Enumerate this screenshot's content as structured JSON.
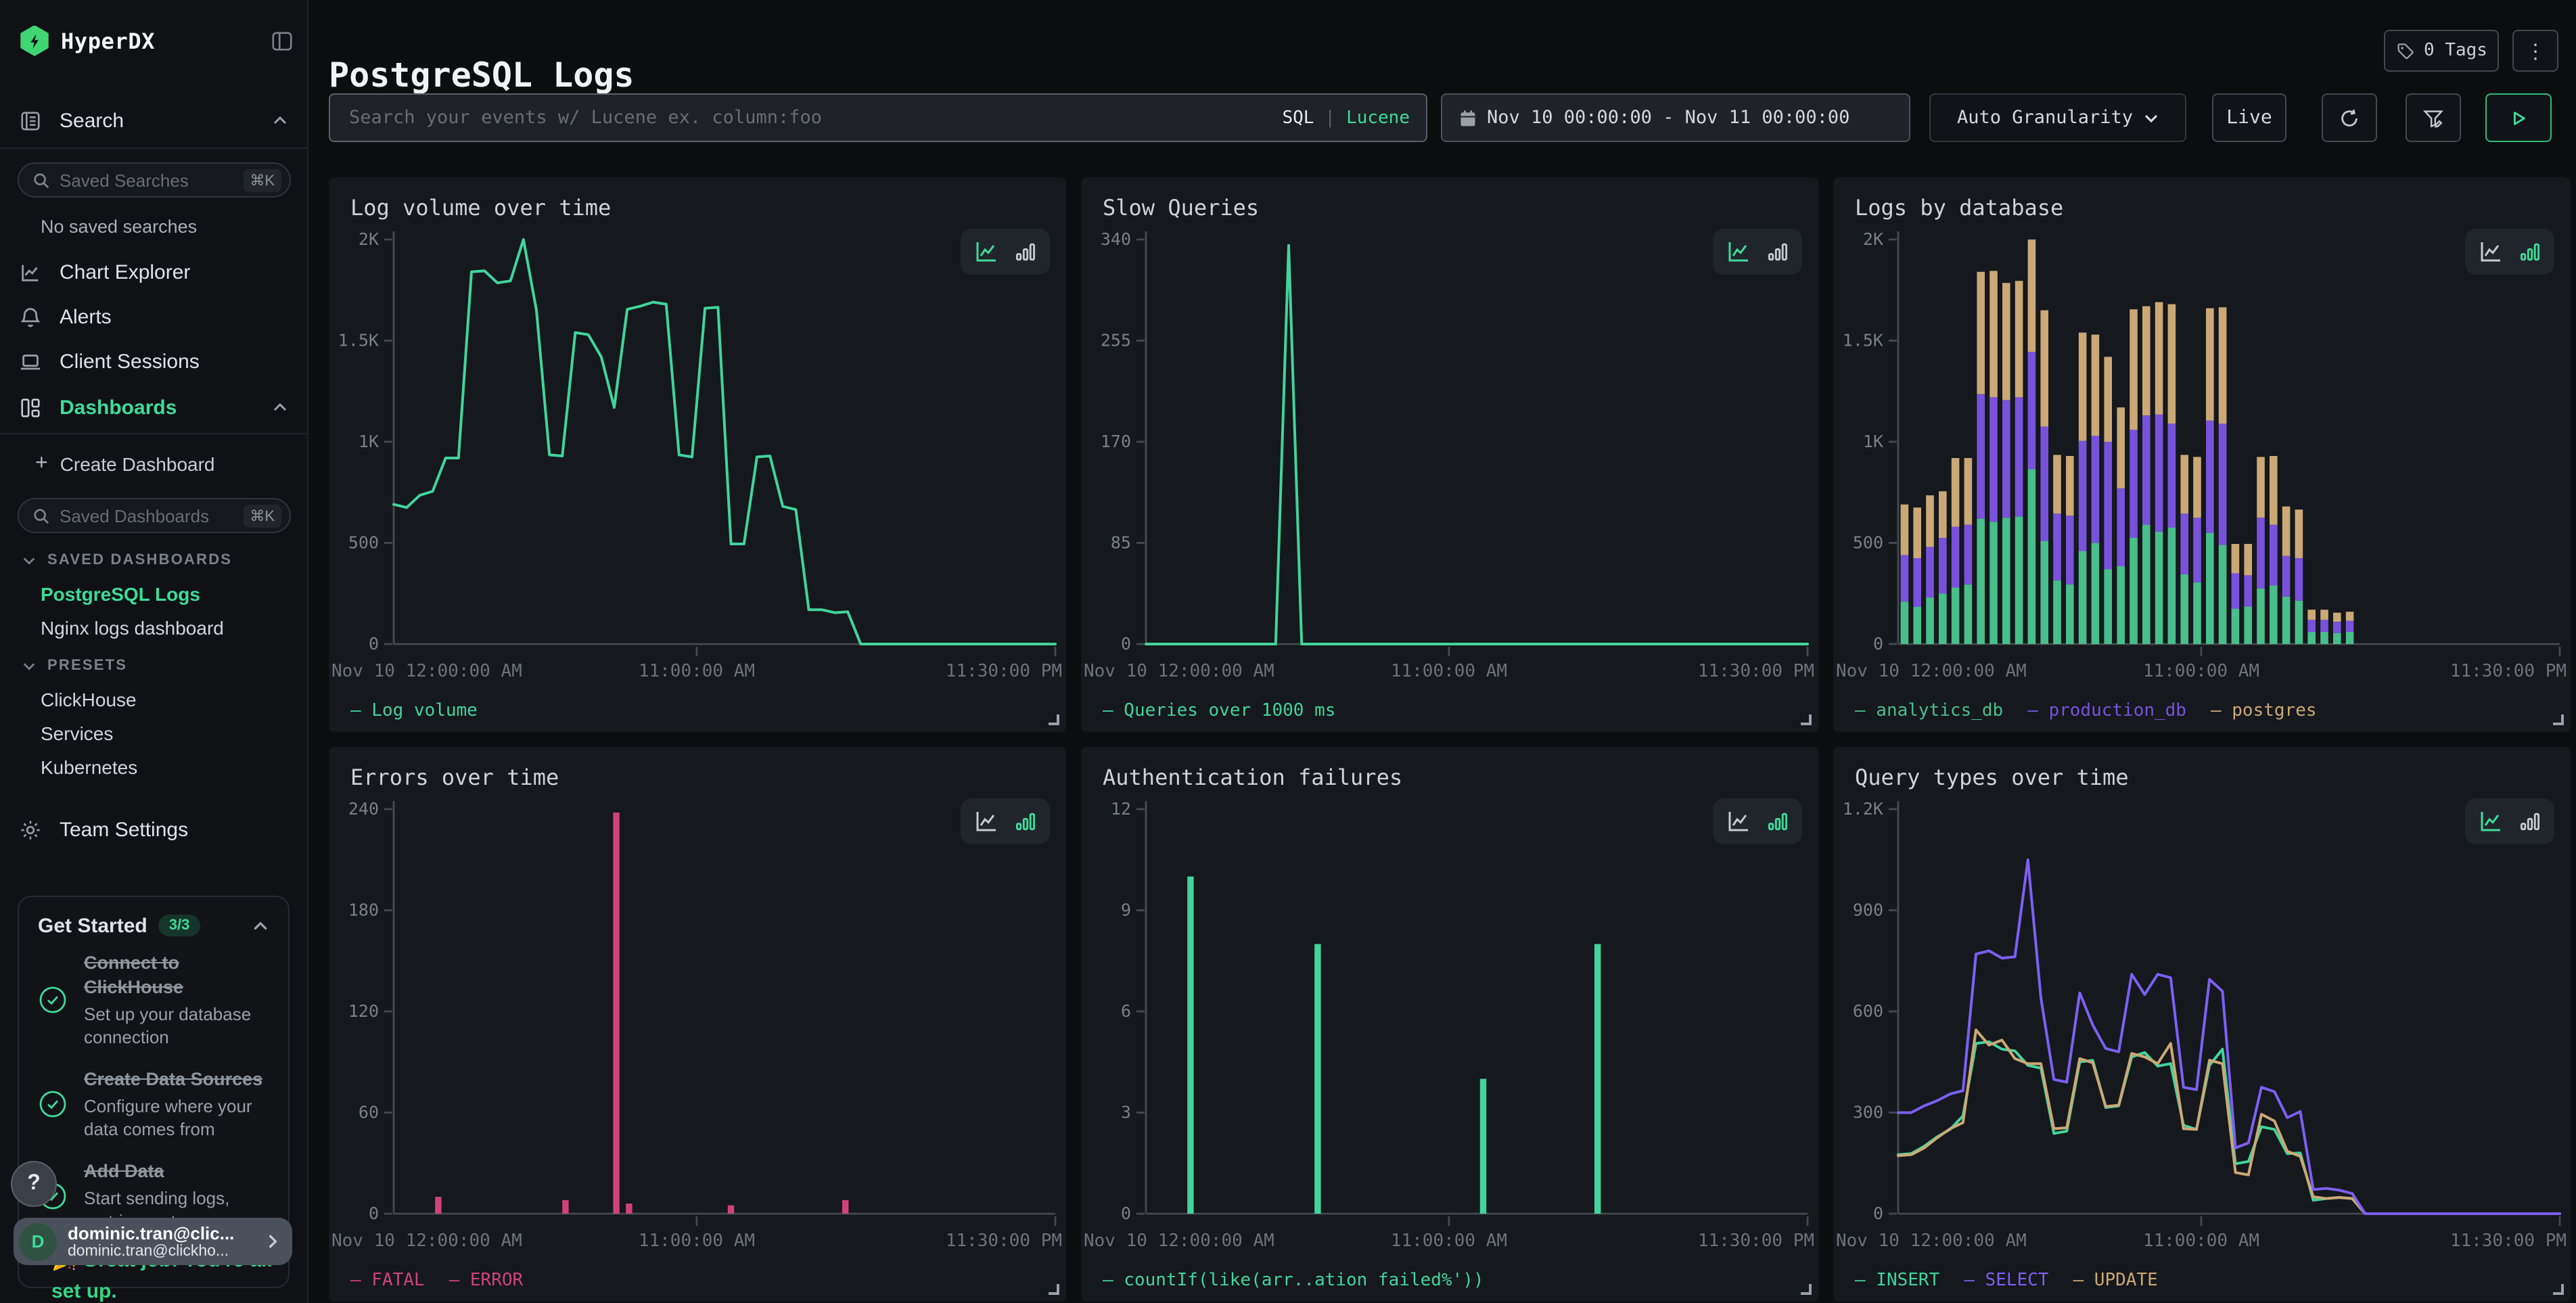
{
  "app": {
    "brand": "HyperDX"
  },
  "colors": {
    "accent_green": "#3edc97",
    "chart_green": "#41d49b",
    "stacked_green": "#48be8b",
    "chart_purple": "#7952dc",
    "chart_tan": "#cba876",
    "chart_pink": "#cf4379"
  },
  "sidebar": {
    "search_nav": "Search",
    "saved_searches_placeholder": "Saved Searches",
    "shortcut_hint": "⌘K",
    "no_saved_searches": "No saved searches",
    "nav": {
      "chart_explorer": "Chart Explorer",
      "alerts": "Alerts",
      "client_sessions": "Client Sessions",
      "dashboards": "Dashboards"
    },
    "create_dashboard": "Create Dashboard",
    "saved_dashboards_placeholder": "Saved Dashboards",
    "saved_dashboards_header": "SAVED DASHBOARDS",
    "saved_dashboards": [
      "PostgreSQL Logs",
      "Nginx logs dashboard"
    ],
    "active_dashboard": "PostgreSQL Logs",
    "presets_header": "PRESETS",
    "presets": [
      "ClickHouse",
      "Services",
      "Kubernetes"
    ],
    "team_settings": "Team Settings",
    "get_started": {
      "title": "Get Started",
      "badge": "3/3",
      "steps": [
        {
          "title": "Connect to ClickHouse",
          "desc": "Set up your database connection",
          "done": true
        },
        {
          "title": "Create Data Sources",
          "desc": "Configure where your data comes from",
          "done": true
        },
        {
          "title": "Add Data",
          "desc": "Start sending logs, metrics, or traces",
          "done": true
        }
      ],
      "congrats": "🎉 Great job! You're all set up."
    },
    "user": {
      "initial": "D",
      "name": "dominic.tran@clic...",
      "email": "dominic.tran@clickho..."
    },
    "help_button": "?"
  },
  "header": {
    "title": "PostgreSQL Logs",
    "tags_label": "0 Tags",
    "search_placeholder": "Search your events w/ Lucene ex. column:foo",
    "lang_sql": "SQL",
    "lang_divider": "|",
    "lang_lucene": "Lucene",
    "date_range": "Nov 10 00:00:00 - Nov 11 00:00:00",
    "granularity": "Auto Granularity",
    "live_label": "Live"
  },
  "chart_data": [
    {
      "id": "log-volume",
      "title": "Log volume over time",
      "type": "line",
      "active_view": "line",
      "x_labels": [
        "Nov 10 12:00:00 AM",
        "11:00:00 AM",
        "11:30:00 PM"
      ],
      "y_ticks": [
        "0",
        "500",
        "1K",
        "1.5K",
        "2K"
      ],
      "y_max": 2000,
      "series": [
        {
          "name": "Log volume",
          "color": "#41d49b",
          "values": [
            690,
            675,
            735,
            755,
            920,
            920,
            1840,
            1845,
            1785,
            1795,
            2000,
            1650,
            935,
            930,
            1540,
            1530,
            1420,
            1170,
            1655,
            1670,
            1690,
            1680,
            935,
            925,
            1660,
            1665,
            495,
            495,
            925,
            930,
            680,
            665,
            170,
            170,
            155,
            160,
            0,
            0,
            0,
            0,
            0,
            0,
            0,
            0,
            0,
            0,
            0,
            0,
            0,
            0,
            0,
            0
          ]
        }
      ],
      "legend": [
        {
          "label": "Log volume",
          "color": "#41d49b"
        }
      ]
    },
    {
      "id": "slow-queries",
      "title": "Slow Queries",
      "type": "line",
      "active_view": "line",
      "x_labels": [
        "Nov 10 12:00:00 AM",
        "11:00:00 AM",
        "11:30:00 PM"
      ],
      "y_ticks": [
        "0",
        "85",
        "170",
        "255",
        "340"
      ],
      "y_max": 340,
      "series": [
        {
          "name": "Queries over 1000 ms",
          "color": "#41d49b",
          "values": [
            0,
            0,
            0,
            0,
            0,
            0,
            0,
            0,
            0,
            0,
            0,
            335,
            0,
            0,
            0,
            0,
            0,
            0,
            0,
            0,
            0,
            0,
            0,
            0,
            0,
            0,
            0,
            0,
            0,
            0,
            0,
            0,
            0,
            0,
            0,
            0,
            0,
            0,
            0,
            0,
            0,
            0,
            0,
            0,
            0,
            0,
            0,
            0,
            0,
            0,
            0,
            0
          ]
        }
      ],
      "legend": [
        {
          "label": "Queries over 1000 ms",
          "color": "#41d49b"
        }
      ]
    },
    {
      "id": "logs-by-database",
      "title": "Logs by database",
      "type": "bar",
      "stacked": true,
      "active_view": "bar",
      "x_labels": [
        "Nov 10 12:00:00 AM",
        "11:00:00 AM",
        "11:30:00 PM"
      ],
      "y_ticks": [
        "0",
        "500",
        "1K",
        "1.5K",
        "2K"
      ],
      "y_max": 2000,
      "series": [
        {
          "name": "analytics_db",
          "color": "#48be8b",
          "values": [
            210,
            185,
            230,
            250,
            280,
            295,
            620,
            605,
            625,
            630,
            865,
            510,
            315,
            295,
            460,
            500,
            370,
            385,
            525,
            590,
            555,
            575,
            345,
            305,
            550,
            490,
            175,
            185,
            275,
            290,
            235,
            215,
            60,
            60,
            55,
            60,
            0,
            0,
            0,
            0,
            0,
            0,
            0,
            0,
            0,
            0,
            0,
            0,
            0,
            0,
            0,
            0
          ]
        },
        {
          "name": "production_db",
          "color": "#7952dc",
          "values": [
            230,
            240,
            250,
            275,
            300,
            295,
            615,
            615,
            580,
            590,
            580,
            565,
            330,
            340,
            545,
            530,
            630,
            385,
            535,
            540,
            580,
            515,
            300,
            320,
            555,
            600,
            175,
            155,
            350,
            300,
            200,
            210,
            60,
            60,
            55,
            55,
            0,
            0,
            0,
            0,
            0,
            0,
            0,
            0,
            0,
            0,
            0,
            0,
            0,
            0,
            0,
            0
          ]
        },
        {
          "name": "postgres",
          "color": "#cba876",
          "values": [
            250,
            250,
            255,
            230,
            340,
            330,
            605,
            625,
            580,
            575,
            555,
            575,
            290,
            295,
            535,
            500,
            420,
            400,
            595,
            540,
            555,
            590,
            290,
            300,
            555,
            575,
            145,
            155,
            300,
            340,
            245,
            240,
            50,
            50,
            45,
            45,
            0,
            0,
            0,
            0,
            0,
            0,
            0,
            0,
            0,
            0,
            0,
            0,
            0,
            0,
            0,
            0
          ]
        }
      ],
      "legend": [
        {
          "label": "analytics_db",
          "color": "#48be8b"
        },
        {
          "label": "production_db",
          "color": "#7952dc"
        },
        {
          "label": "postgres",
          "color": "#cba876"
        }
      ]
    },
    {
      "id": "errors-over-time",
      "title": "Errors over time",
      "type": "bar",
      "active_view": "bar",
      "x_labels": [
        "Nov 10 12:00:00 AM",
        "11:00:00 AM",
        "11:30:00 PM"
      ],
      "y_ticks": [
        "0",
        "60",
        "120",
        "180",
        "240"
      ],
      "y_max": 240,
      "series": [
        {
          "name": "errors",
          "color": "#cf4379",
          "values": [
            0,
            0,
            0,
            10,
            0,
            0,
            0,
            0,
            0,
            0,
            0,
            0,
            0,
            8,
            0,
            0,
            0,
            238,
            6,
            0,
            0,
            0,
            0,
            0,
            0,
            0,
            5,
            0,
            0,
            0,
            0,
            0,
            0,
            0,
            0,
            8,
            0,
            0,
            0,
            0,
            0,
            0,
            0,
            0,
            0,
            0,
            0,
            0,
            0,
            0,
            0,
            0
          ]
        }
      ],
      "legend": [
        {
          "label": "FATAL",
          "color": "#cf4379"
        },
        {
          "label": "ERROR",
          "color": "#cf4379"
        }
      ]
    },
    {
      "id": "auth-failures",
      "title": "Authentication failures",
      "type": "bar",
      "active_view": "bar",
      "x_labels": [
        "Nov 10 12:00:00 AM",
        "11:00:00 AM",
        "11:30:00 PM"
      ],
      "y_ticks": [
        "0",
        "3",
        "6",
        "9",
        "12"
      ],
      "y_max": 12,
      "series": [
        {
          "name": "countIf(like(arr..ation failed%'))",
          "color": "#41d49b",
          "values": [
            0,
            0,
            0,
            10,
            0,
            0,
            0,
            0,
            0,
            0,
            0,
            0,
            0,
            8,
            0,
            0,
            0,
            0,
            0,
            0,
            0,
            0,
            0,
            0,
            0,
            0,
            4,
            0,
            0,
            0,
            0,
            0,
            0,
            0,
            0,
            8,
            0,
            0,
            0,
            0,
            0,
            0,
            0,
            0,
            0,
            0,
            0,
            0,
            0,
            0,
            0,
            0
          ]
        }
      ],
      "legend": [
        {
          "label": "countIf(like(arr..ation failed%'))",
          "color": "#41d49b"
        }
      ]
    },
    {
      "id": "query-types",
      "title": "Query types over time",
      "type": "line",
      "active_view": "line",
      "x_labels": [
        "Nov 10 12:00:00 AM",
        "11:00:00 AM",
        "11:30:00 PM"
      ],
      "y_ticks": [
        "0",
        "300",
        "600",
        "900",
        "1.2K"
      ],
      "y_max": 1200,
      "series": [
        {
          "name": "INSERT",
          "color": "#41d49b",
          "values": [
            175,
            178,
            200,
            228,
            250,
            290,
            505,
            510,
            488,
            483,
            440,
            432,
            238,
            245,
            450,
            455,
            315,
            320,
            465,
            478,
            438,
            445,
            262,
            250,
            440,
            488,
            148,
            155,
            258,
            250,
            178,
            180,
            40,
            45,
            48,
            45,
            0,
            0,
            0,
            0,
            0,
            0,
            0,
            0,
            0,
            0,
            0,
            0,
            0,
            0,
            0,
            0
          ]
        },
        {
          "name": "UPDATE",
          "color": "#cba876",
          "values": [
            172,
            175,
            195,
            225,
            252,
            270,
            545,
            500,
            515,
            460,
            445,
            445,
            252,
            255,
            460,
            448,
            318,
            322,
            475,
            465,
            445,
            505,
            252,
            250,
            455,
            445,
            122,
            115,
            295,
            275,
            185,
            170,
            50,
            45,
            48,
            45,
            0,
            0,
            0,
            0,
            0,
            0,
            0,
            0,
            0,
            0,
            0,
            0,
            0,
            0,
            0,
            0
          ]
        },
        {
          "name": "SELECT",
          "color": "#7d5ff3",
          "values": [
            300,
            300,
            320,
            335,
            355,
            365,
            770,
            780,
            758,
            762,
            1050,
            640,
            398,
            390,
            655,
            560,
            490,
            480,
            710,
            650,
            710,
            700,
            375,
            368,
            695,
            660,
            195,
            210,
            375,
            362,
            285,
            303,
            72,
            75,
            70,
            60,
            0,
            0,
            0,
            0,
            0,
            0,
            0,
            0,
            0,
            0,
            0,
            0,
            0,
            0,
            0,
            0
          ]
        }
      ],
      "legend": [
        {
          "label": "INSERT",
          "color": "#41d49b"
        },
        {
          "label": "SELECT",
          "color": "#7d5ff3"
        },
        {
          "label": "UPDATE",
          "color": "#cba876"
        }
      ]
    }
  ]
}
